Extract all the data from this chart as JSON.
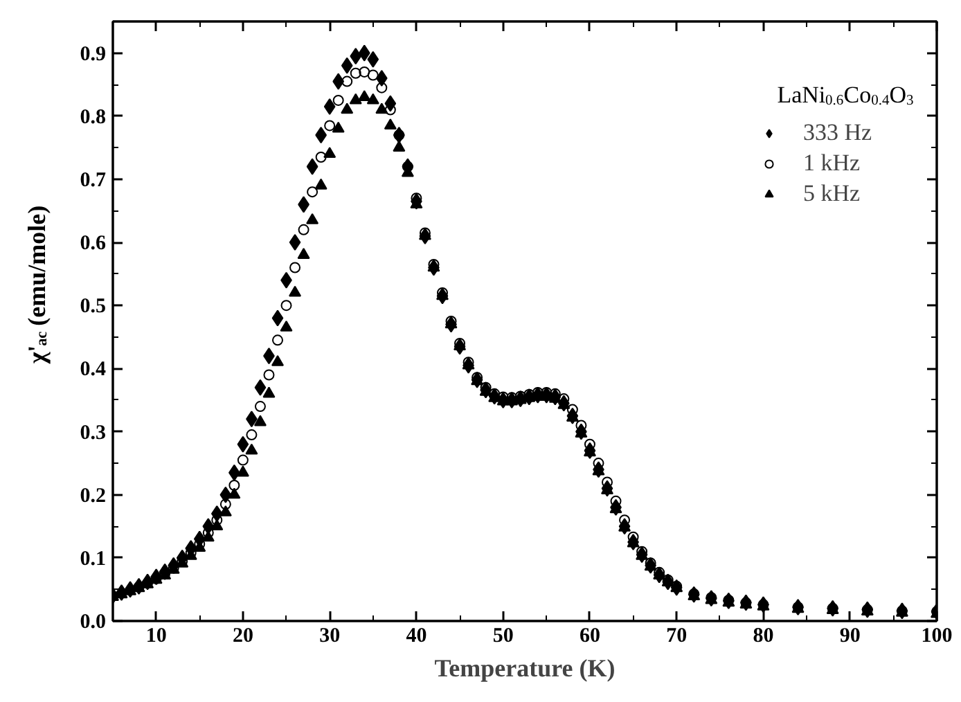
{
  "chart_data": {
    "type": "scatter",
    "xlabel": "Temperature (K)",
    "ylabel": "χ'$_{ac}$ (emu/mole)",
    "legend_title": "LaNi$_{0.6}$Co$_{0.4}$O$_{3}$",
    "legend": "top right",
    "grid": false,
    "xlim": [
      5,
      100
    ],
    "ylim": [
      0,
      0.95
    ],
    "xticks": [
      10,
      {
        "value": 15,
        "label": null
      },
      20,
      {
        "value": 25,
        "label": null
      },
      30,
      {
        "value": 35,
        "label": null
      },
      40,
      {
        "value": 45,
        "label": null
      },
      50,
      {
        "value": 55,
        "label": null
      },
      60,
      {
        "value": 65,
        "label": null
      },
      70,
      {
        "value": 75,
        "label": null
      },
      80,
      {
        "value": 85,
        "label": null
      },
      90,
      {
        "value": 95,
        "label": null
      },
      100
    ],
    "yticks": [
      {
        "value": 0,
        "label": "0.0"
      },
      {
        "value": 0.05,
        "label": null
      },
      0.1,
      {
        "value": 0.15,
        "label": null
      },
      0.2,
      {
        "value": 0.25,
        "label": null
      },
      0.3,
      {
        "value": 0.35,
        "label": null
      },
      0.4,
      {
        "value": 0.45,
        "label": null
      },
      0.5,
      {
        "value": 0.55,
        "label": null
      },
      0.6,
      {
        "value": 0.65,
        "label": null
      },
      0.7,
      {
        "value": 0.75,
        "label": null
      },
      0.8,
      {
        "value": 0.85,
        "label": null
      },
      0.9
    ],
    "x": [
      5,
      6,
      7,
      8,
      9,
      10,
      11,
      12,
      13,
      14,
      15,
      16,
      17,
      18,
      19,
      20,
      21,
      22,
      23,
      24,
      25,
      26,
      27,
      28,
      29,
      30,
      31,
      32,
      33,
      34,
      35,
      36,
      37,
      38,
      39,
      40,
      41,
      42,
      43,
      44,
      45,
      46,
      47,
      48,
      49,
      50,
      51,
      52,
      53,
      54,
      55,
      56,
      57,
      58,
      59,
      60,
      61,
      62,
      63,
      64,
      65,
      66,
      67,
      68,
      69,
      70,
      72,
      74,
      76,
      78,
      80,
      84,
      88,
      92,
      96,
      100
    ],
    "series": [
      {
        "name": "333 Hz",
        "color": "#000000",
        "marker": "diamond",
        "values": [
          0.04,
          0.045,
          0.05,
          0.055,
          0.062,
          0.07,
          0.078,
          0.088,
          0.1,
          0.115,
          0.13,
          0.15,
          0.17,
          0.2,
          0.235,
          0.28,
          0.32,
          0.37,
          0.42,
          0.48,
          0.54,
          0.6,
          0.66,
          0.72,
          0.77,
          0.815,
          0.855,
          0.88,
          0.895,
          0.9,
          0.89,
          0.86,
          0.82,
          0.77,
          0.72,
          0.665,
          0.61,
          0.56,
          0.515,
          0.47,
          0.435,
          0.405,
          0.382,
          0.366,
          0.356,
          0.35,
          0.35,
          0.352,
          0.355,
          0.358,
          0.358,
          0.355,
          0.345,
          0.325,
          0.3,
          0.27,
          0.24,
          0.21,
          0.18,
          0.15,
          0.125,
          0.105,
          0.088,
          0.073,
          0.062,
          0.053,
          0.042,
          0.036,
          0.032,
          0.029,
          0.026,
          0.022,
          0.02,
          0.018,
          0.016,
          0.015
        ]
      },
      {
        "name": "1 kHz",
        "color": "#000000",
        "marker": "circle",
        "values": [
          null,
          null,
          null,
          0.054,
          0.06,
          0.067,
          0.075,
          0.084,
          0.095,
          0.108,
          0.122,
          0.14,
          0.16,
          0.185,
          0.215,
          0.255,
          0.295,
          0.34,
          0.39,
          0.445,
          0.5,
          0.56,
          0.62,
          0.68,
          0.735,
          0.785,
          0.825,
          0.855,
          0.868,
          0.87,
          0.865,
          0.845,
          0.81,
          0.77,
          0.72,
          0.67,
          0.615,
          0.565,
          0.52,
          0.475,
          0.44,
          0.41,
          0.386,
          0.37,
          0.36,
          0.355,
          0.354,
          0.356,
          0.359,
          0.362,
          0.362,
          0.36,
          0.352,
          0.335,
          0.31,
          0.28,
          0.25,
          0.22,
          0.19,
          0.16,
          0.133,
          0.11,
          0.092,
          0.077,
          0.065,
          0.055,
          0.043,
          0.037,
          0.033,
          0.029,
          0.026,
          0.022,
          0.02,
          0.018,
          0.016,
          0.015
        ]
      },
      {
        "name": "5 kHz",
        "color": "#000000",
        "marker": "triangle",
        "values": [
          0.038,
          0.042,
          0.047,
          0.052,
          0.058,
          0.065,
          0.072,
          0.081,
          0.091,
          0.103,
          0.116,
          0.132,
          0.15,
          0.172,
          0.2,
          0.235,
          0.27,
          0.315,
          0.36,
          0.41,
          0.465,
          0.52,
          0.58,
          0.635,
          0.69,
          0.74,
          0.78,
          0.81,
          0.825,
          0.83,
          0.825,
          0.81,
          0.785,
          0.75,
          0.71,
          0.66,
          0.61,
          0.56,
          0.515,
          0.47,
          0.435,
          0.405,
          0.38,
          0.363,
          0.353,
          0.348,
          0.348,
          0.35,
          0.353,
          0.355,
          0.355,
          0.352,
          0.342,
          0.322,
          0.297,
          0.267,
          0.237,
          0.207,
          0.177,
          0.148,
          0.123,
          0.103,
          0.086,
          0.072,
          0.061,
          0.052,
          0.039,
          0.033,
          0.029,
          0.026,
          0.023,
          0.019,
          0.017,
          0.015,
          0.013,
          0.011
        ]
      }
    ]
  }
}
